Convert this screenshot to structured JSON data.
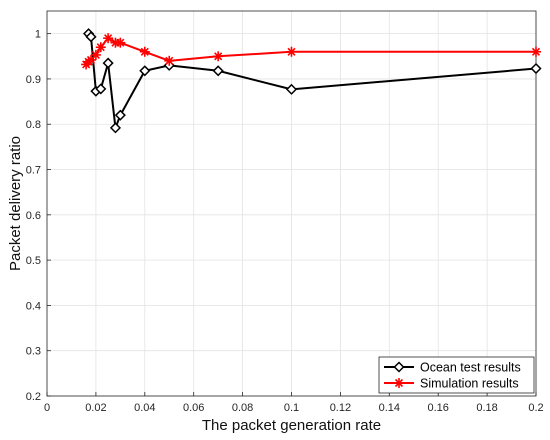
{
  "chart_data": {
    "type": "line",
    "xlabel": "The packet generation rate",
    "ylabel": "Packet delivery ratio",
    "xlim": [
      0,
      0.2
    ],
    "ylim": [
      0.2,
      1.05
    ],
    "xticks": [
      0,
      0.02,
      0.04,
      0.06,
      0.08,
      0.1,
      0.12,
      0.14,
      0.16,
      0.18,
      0.2
    ],
    "xtick_labels": [
      "0",
      "0.02",
      "0.04",
      "0.06",
      "0.08",
      "0.1",
      "0.12",
      "0.14",
      "0.16",
      "0.18",
      "0.2"
    ],
    "yticks": [
      0.2,
      0.3,
      0.4,
      0.5,
      0.6,
      0.7,
      0.8,
      0.9,
      1
    ],
    "ytick_labels": [
      "0.2",
      "0.3",
      "0.4",
      "0.5",
      "0.6",
      "0.7",
      "0.8",
      "0.9",
      "1"
    ],
    "grid": true,
    "legend_position": "bottom-right",
    "series": [
      {
        "name": "Ocean test results",
        "color": "#000000",
        "marker": "diamond",
        "x": [
          0.017,
          0.018,
          0.02,
          0.022,
          0.025,
          0.028,
          0.03,
          0.04,
          0.05,
          0.07,
          0.1,
          0.2
        ],
        "y": [
          1.0,
          0.993,
          0.873,
          0.878,
          0.935,
          0.792,
          0.82,
          0.918,
          0.93,
          0.918,
          0.877,
          0.923
        ]
      },
      {
        "name": "Simulation results",
        "color": "#ff0000",
        "marker": "asterisk",
        "x": [
          0.016,
          0.017,
          0.018,
          0.02,
          0.022,
          0.025,
          0.028,
          0.03,
          0.04,
          0.05,
          0.07,
          0.1,
          0.2
        ],
        "y": [
          0.932,
          0.938,
          0.942,
          0.953,
          0.97,
          0.99,
          0.98,
          0.98,
          0.96,
          0.94,
          0.95,
          0.96,
          0.96
        ]
      }
    ]
  }
}
